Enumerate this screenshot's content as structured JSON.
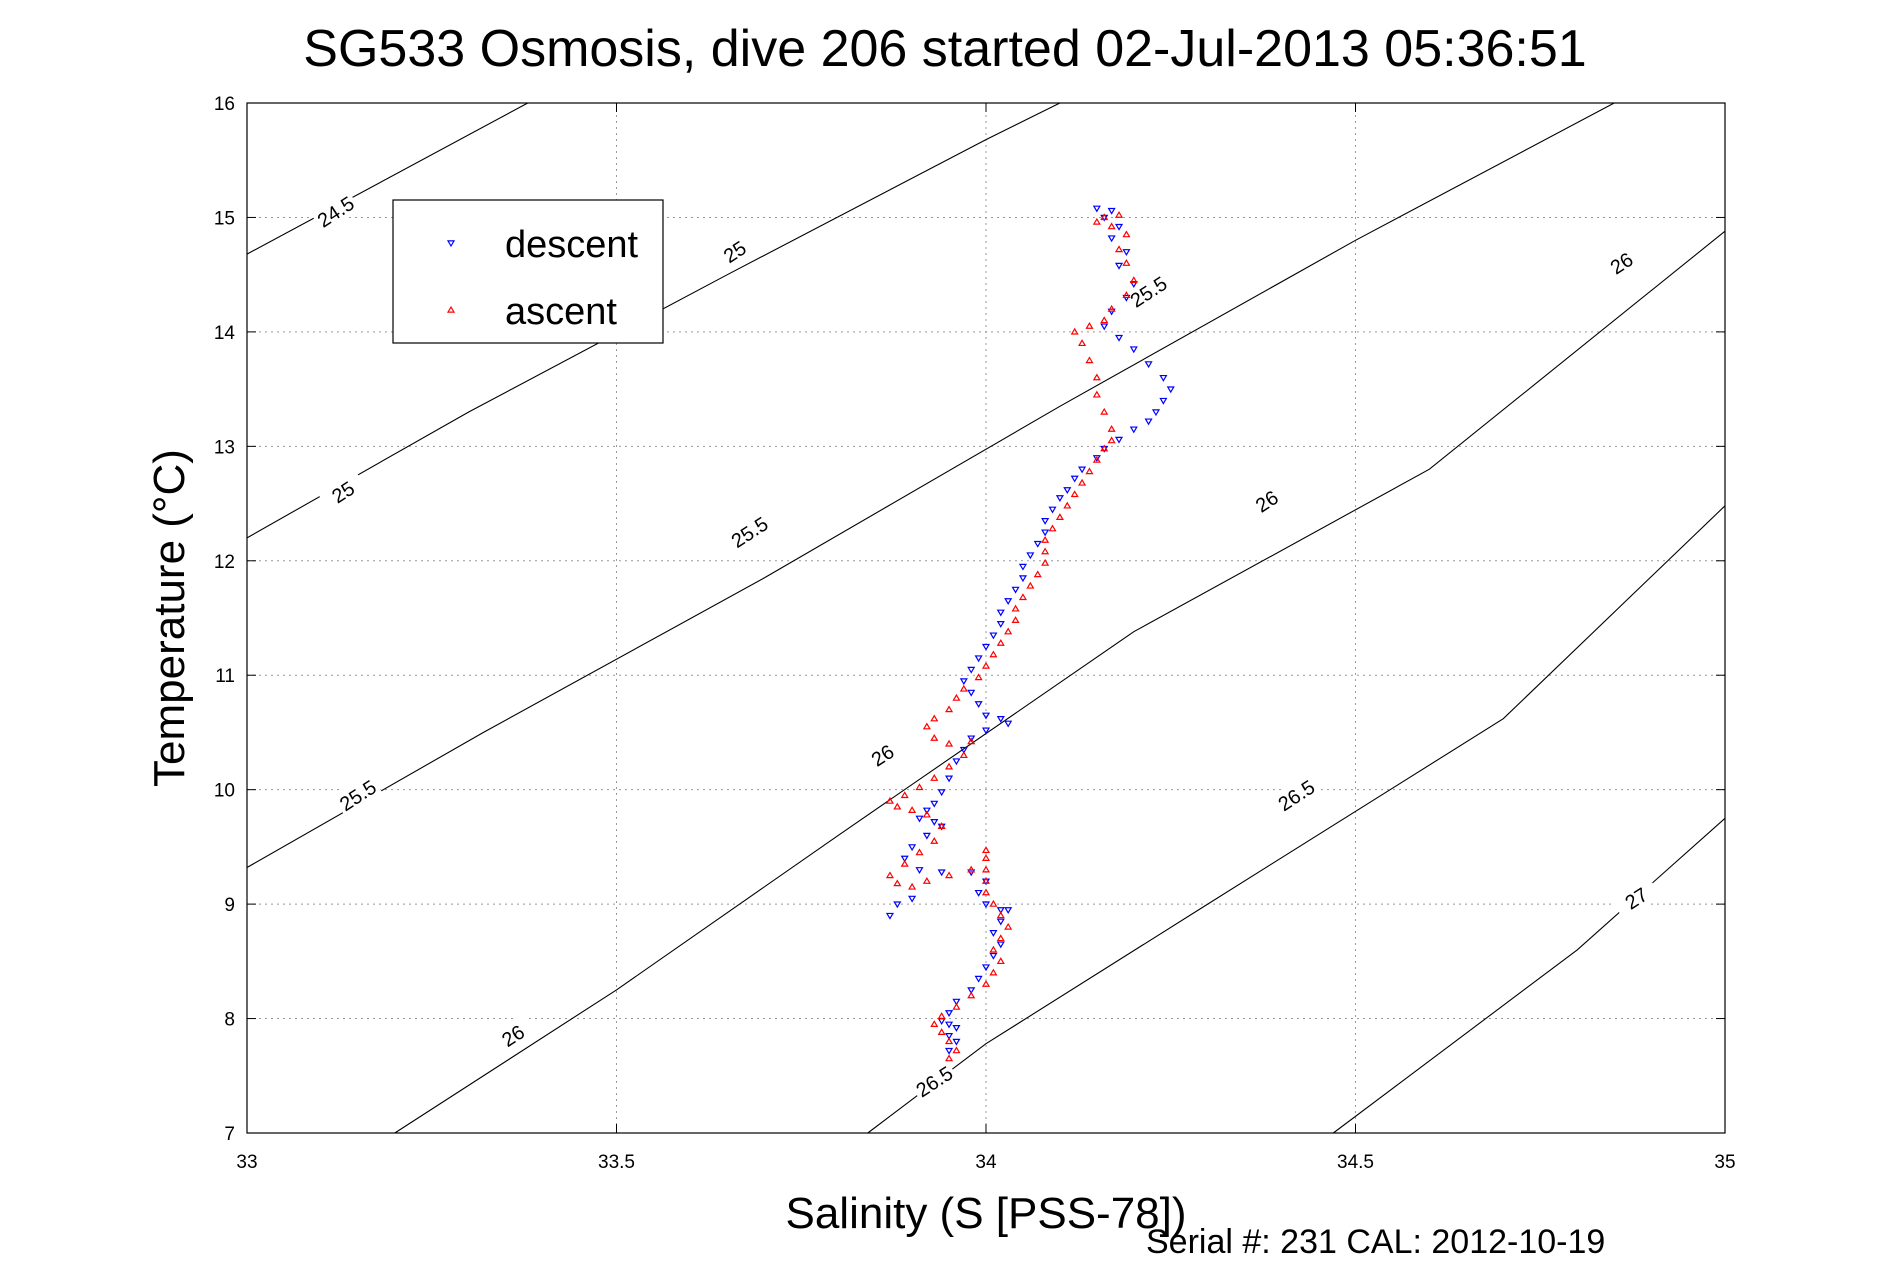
{
  "chart_data": {
    "type": "scatter",
    "title": "SG533 Osmosis, dive 206 started 02-Jul-2013 05:36:51",
    "xlabel": "Salinity (S [PSS-78])",
    "ylabel": "Temperature (°C)",
    "xlim": [
      33,
      35
    ],
    "ylim": [
      7,
      16
    ],
    "x_ticks": [
      "33",
      "33.5",
      "34",
      "34.5",
      "35"
    ],
    "y_ticks": [
      "7",
      "8",
      "9",
      "10",
      "11",
      "12",
      "13",
      "14",
      "15",
      "16"
    ],
    "grid": true,
    "legend_position": "top-left",
    "footer": "Serial #: 231  CAL: 2012-10-19",
    "series": [
      {
        "name": "descent",
        "color": "#0000ff",
        "marker": "triangle-down",
        "points": [
          [
            34.15,
            15.08
          ],
          [
            34.17,
            15.06
          ],
          [
            34.16,
            15.0
          ],
          [
            34.18,
            14.92
          ],
          [
            34.17,
            14.82
          ],
          [
            34.19,
            14.7
          ],
          [
            34.18,
            14.58
          ],
          [
            34.2,
            14.42
          ],
          [
            34.19,
            14.3
          ],
          [
            34.17,
            14.18
          ],
          [
            34.16,
            14.05
          ],
          [
            34.18,
            13.95
          ],
          [
            34.2,
            13.85
          ],
          [
            34.22,
            13.72
          ],
          [
            34.24,
            13.6
          ],
          [
            34.25,
            13.5
          ],
          [
            34.24,
            13.4
          ],
          [
            34.23,
            13.3
          ],
          [
            34.22,
            13.22
          ],
          [
            34.2,
            13.15
          ],
          [
            34.18,
            13.06
          ],
          [
            34.16,
            12.98
          ],
          [
            34.15,
            12.9
          ],
          [
            34.13,
            12.8
          ],
          [
            34.12,
            12.72
          ],
          [
            34.11,
            12.62
          ],
          [
            34.1,
            12.55
          ],
          [
            34.09,
            12.45
          ],
          [
            34.08,
            12.35
          ],
          [
            34.08,
            12.25
          ],
          [
            34.07,
            12.15
          ],
          [
            34.06,
            12.05
          ],
          [
            34.05,
            11.95
          ],
          [
            34.05,
            11.85
          ],
          [
            34.04,
            11.75
          ],
          [
            34.03,
            11.65
          ],
          [
            34.02,
            11.55
          ],
          [
            34.02,
            11.45
          ],
          [
            34.01,
            11.35
          ],
          [
            34.0,
            11.25
          ],
          [
            33.99,
            11.15
          ],
          [
            33.98,
            11.05
          ],
          [
            33.97,
            10.95
          ],
          [
            33.98,
            10.85
          ],
          [
            33.99,
            10.75
          ],
          [
            34.0,
            10.65
          ],
          [
            34.02,
            10.62
          ],
          [
            34.03,
            10.58
          ],
          [
            34.0,
            10.52
          ],
          [
            33.98,
            10.45
          ],
          [
            33.97,
            10.35
          ],
          [
            33.96,
            10.25
          ],
          [
            33.95,
            10.1
          ],
          [
            33.94,
            9.98
          ],
          [
            33.93,
            9.88
          ],
          [
            33.92,
            9.82
          ],
          [
            33.91,
            9.75
          ],
          [
            33.93,
            9.72
          ],
          [
            33.94,
            9.68
          ],
          [
            33.92,
            9.6
          ],
          [
            33.9,
            9.5
          ],
          [
            33.89,
            9.4
          ],
          [
            33.91,
            9.3
          ],
          [
            33.94,
            9.28
          ],
          [
            33.98,
            9.28
          ],
          [
            34.0,
            9.2
          ],
          [
            33.99,
            9.1
          ],
          [
            34.0,
            9.0
          ],
          [
            34.02,
            8.95
          ],
          [
            34.03,
            8.95
          ],
          [
            34.02,
            8.85
          ],
          [
            34.01,
            8.75
          ],
          [
            34.02,
            8.65
          ],
          [
            34.01,
            8.55
          ],
          [
            34.0,
            8.45
          ],
          [
            33.99,
            8.35
          ],
          [
            33.98,
            8.25
          ],
          [
            33.96,
            8.15
          ],
          [
            33.95,
            8.05
          ],
          [
            33.94,
            7.98
          ],
          [
            33.95,
            7.95
          ],
          [
            33.96,
            7.92
          ],
          [
            33.95,
            7.85
          ],
          [
            33.96,
            7.8
          ],
          [
            33.95,
            7.72
          ],
          [
            33.9,
            9.05
          ],
          [
            33.88,
            9.0
          ],
          [
            33.87,
            8.9
          ]
        ]
      },
      {
        "name": "ascent",
        "color": "#ff0000",
        "marker": "triangle-up",
        "points": [
          [
            33.95,
            7.65
          ],
          [
            33.96,
            7.72
          ],
          [
            33.95,
            7.8
          ],
          [
            33.94,
            7.88
          ],
          [
            33.93,
            7.95
          ],
          [
            33.94,
            8.02
          ],
          [
            33.96,
            8.1
          ],
          [
            33.98,
            8.2
          ],
          [
            34.0,
            8.3
          ],
          [
            34.01,
            8.4
          ],
          [
            34.02,
            8.5
          ],
          [
            34.01,
            8.6
          ],
          [
            34.02,
            8.7
          ],
          [
            34.03,
            8.8
          ],
          [
            34.02,
            8.9
          ],
          [
            34.01,
            9.0
          ],
          [
            34.0,
            9.1
          ],
          [
            34.0,
            9.2
          ],
          [
            34.0,
            9.3
          ],
          [
            34.0,
            9.4
          ],
          [
            34.0,
            9.47
          ],
          [
            33.98,
            9.3
          ],
          [
            33.95,
            9.25
          ],
          [
            33.92,
            9.2
          ],
          [
            33.9,
            9.15
          ],
          [
            33.88,
            9.18
          ],
          [
            33.87,
            9.25
          ],
          [
            33.89,
            9.35
          ],
          [
            33.91,
            9.45
          ],
          [
            33.93,
            9.55
          ],
          [
            33.94,
            9.68
          ],
          [
            33.92,
            9.78
          ],
          [
            33.9,
            9.82
          ],
          [
            33.88,
            9.85
          ],
          [
            33.87,
            9.9
          ],
          [
            33.89,
            9.95
          ],
          [
            33.91,
            10.02
          ],
          [
            33.93,
            10.1
          ],
          [
            33.95,
            10.2
          ],
          [
            33.97,
            10.3
          ],
          [
            33.98,
            10.42
          ],
          [
            33.95,
            10.4
          ],
          [
            33.93,
            10.45
          ],
          [
            33.92,
            10.55
          ],
          [
            33.93,
            10.62
          ],
          [
            33.95,
            10.7
          ],
          [
            33.96,
            10.8
          ],
          [
            33.97,
            10.88
          ],
          [
            33.99,
            10.98
          ],
          [
            34.0,
            11.08
          ],
          [
            34.01,
            11.18
          ],
          [
            34.02,
            11.28
          ],
          [
            34.03,
            11.38
          ],
          [
            34.04,
            11.48
          ],
          [
            34.04,
            11.58
          ],
          [
            34.05,
            11.68
          ],
          [
            34.06,
            11.78
          ],
          [
            34.07,
            11.88
          ],
          [
            34.08,
            11.98
          ],
          [
            34.08,
            12.08
          ],
          [
            34.08,
            12.18
          ],
          [
            34.09,
            12.28
          ],
          [
            34.1,
            12.38
          ],
          [
            34.11,
            12.48
          ],
          [
            34.12,
            12.58
          ],
          [
            34.13,
            12.68
          ],
          [
            34.14,
            12.78
          ],
          [
            34.15,
            12.88
          ],
          [
            34.16,
            12.98
          ],
          [
            34.17,
            13.05
          ],
          [
            34.17,
            13.15
          ],
          [
            34.16,
            13.3
          ],
          [
            34.15,
            13.45
          ],
          [
            34.15,
            13.6
          ],
          [
            34.14,
            13.75
          ],
          [
            34.13,
            13.9
          ],
          [
            34.12,
            14.0
          ],
          [
            34.14,
            14.05
          ],
          [
            34.16,
            14.1
          ],
          [
            34.17,
            14.2
          ],
          [
            34.19,
            14.32
          ],
          [
            34.2,
            14.45
          ],
          [
            34.19,
            14.6
          ],
          [
            34.18,
            14.72
          ],
          [
            34.19,
            14.85
          ],
          [
            34.17,
            14.92
          ],
          [
            34.15,
            14.96
          ],
          [
            34.16,
            15.0
          ],
          [
            34.18,
            15.02
          ]
        ]
      }
    ],
    "contours": [
      {
        "value": "24.5",
        "points": [
          [
            33.0,
            14.68
          ],
          [
            33.38,
            16.0
          ]
        ],
        "labels": [
          [
            33.12,
            15.05
          ]
        ]
      },
      {
        "value": "25",
        "points": [
          [
            33.0,
            12.2
          ],
          [
            33.3,
            13.3
          ],
          [
            33.65,
            14.5
          ],
          [
            34.0,
            15.68
          ],
          [
            34.1,
            16.0
          ]
        ],
        "labels": [
          [
            33.13,
            12.6
          ],
          [
            33.66,
            14.7
          ]
        ]
      },
      {
        "value": "25.5",
        "points": [
          [
            33.0,
            9.32
          ],
          [
            33.32,
            10.5
          ],
          [
            33.7,
            11.85
          ],
          [
            34.1,
            13.35
          ],
          [
            34.5,
            14.8
          ],
          [
            34.85,
            16.0
          ]
        ],
        "labels": [
          [
            33.15,
            9.95
          ],
          [
            33.68,
            12.25
          ],
          [
            34.22,
            14.35
          ]
        ]
      },
      {
        "value": "26",
        "points": [
          [
            33.2,
            7.0
          ],
          [
            33.5,
            8.25
          ],
          [
            33.8,
            9.6
          ],
          [
            34.2,
            11.38
          ],
          [
            34.6,
            12.8
          ],
          [
            35.0,
            14.88
          ]
        ],
        "labels": [
          [
            33.36,
            7.85
          ],
          [
            33.86,
            10.3
          ],
          [
            34.38,
            12.52
          ],
          [
            34.86,
            14.6
          ]
        ]
      },
      {
        "value": "26.5",
        "points": [
          [
            33.84,
            7.0
          ],
          [
            34.0,
            7.78
          ],
          [
            34.3,
            9.0
          ],
          [
            34.7,
            10.62
          ],
          [
            35.0,
            12.48
          ]
        ],
        "labels": [
          [
            33.93,
            7.45
          ],
          [
            34.42,
            9.95
          ]
        ]
      },
      {
        "value": "27",
        "points": [
          [
            34.47,
            7.0
          ],
          [
            34.8,
            8.6
          ],
          [
            35.0,
            9.75
          ]
        ],
        "labels": [
          [
            34.88,
            9.05
          ]
        ]
      }
    ]
  }
}
